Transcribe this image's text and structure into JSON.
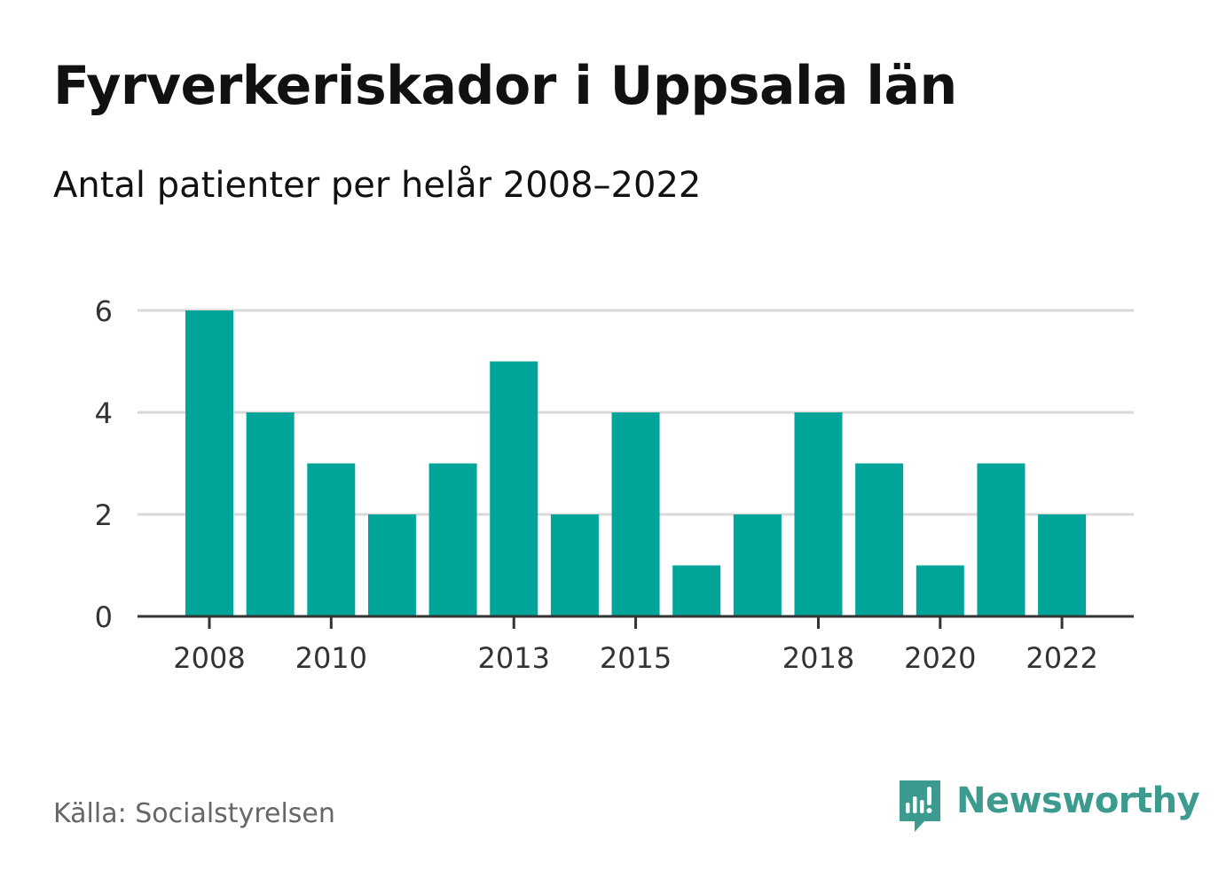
{
  "header": {
    "title": "Fyrverkeriskador i Uppsala län",
    "subtitle": "Antal patienter per helår 2008–2022"
  },
  "footer": {
    "source": "Källa: Socialstyrelsen",
    "brand": "Newsworthy",
    "brand_icon": "newsworthy-logo-icon"
  },
  "colors": {
    "bar": "#00a499",
    "grid": "#d9d9d9",
    "axis": "#333333",
    "brand": "#3d9a8e"
  },
  "chart_data": {
    "type": "bar",
    "categories": [
      "2008",
      "2009",
      "2010",
      "2011",
      "2012",
      "2013",
      "2014",
      "2015",
      "2016",
      "2017",
      "2018",
      "2019",
      "2020",
      "2021",
      "2022"
    ],
    "values": [
      6,
      4,
      3,
      2,
      3,
      5,
      2,
      4,
      1,
      2,
      4,
      3,
      1,
      3,
      2
    ],
    "x_tick_labels": [
      "2008",
      "2010",
      "2013",
      "2015",
      "2018",
      "2020",
      "2022"
    ],
    "y_ticks": [
      "0",
      "2",
      "4",
      "6"
    ],
    "ylim": [
      0,
      6
    ],
    "grid": true,
    "legend": "none",
    "xlabel": "",
    "ylabel": ""
  }
}
